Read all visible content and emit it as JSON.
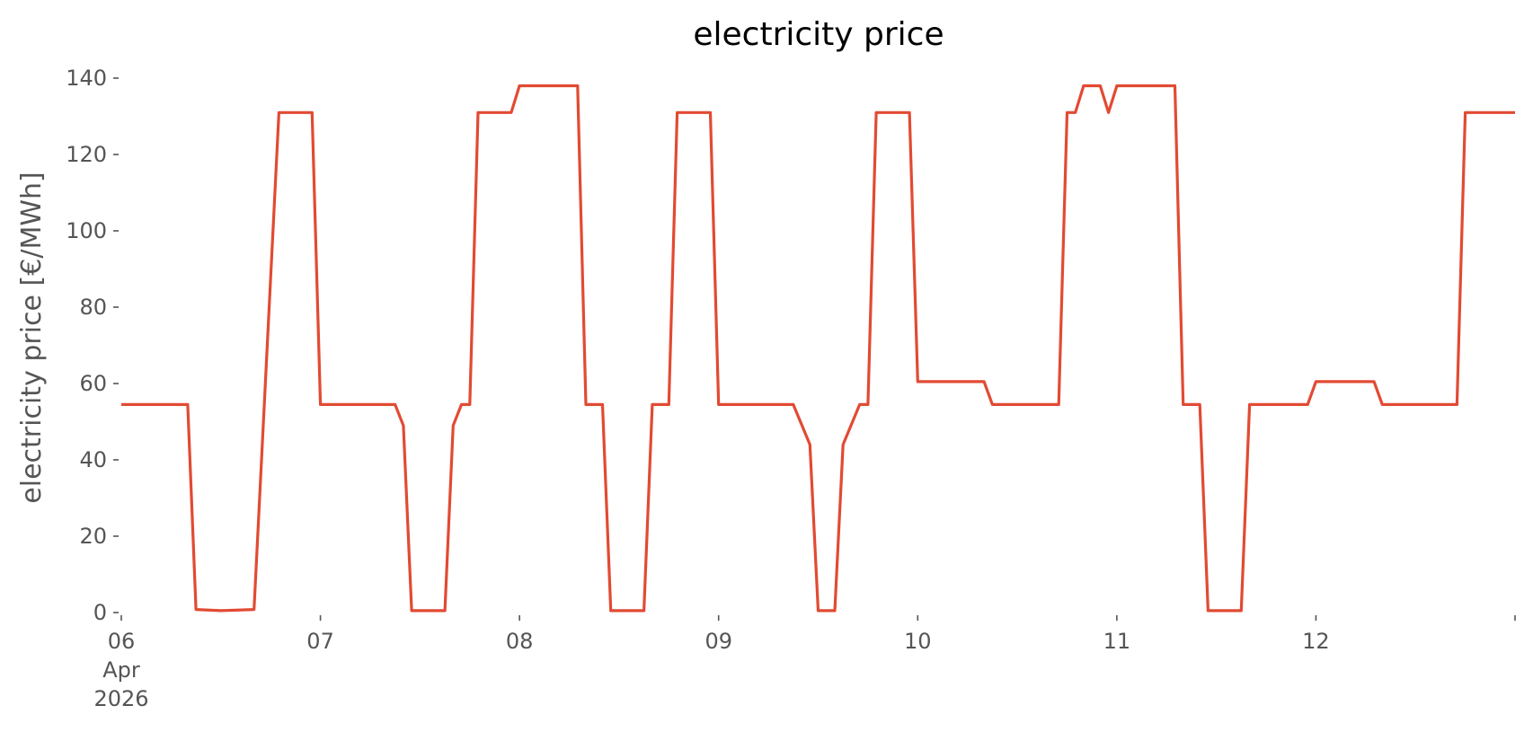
{
  "chart_data": {
    "type": "line",
    "title": "electricity price",
    "xlabel": "",
    "ylabel": "electricity price [€/MWh]",
    "xlim": [
      "2026-04-06 00:00",
      "2026-04-13 00:00"
    ],
    "ylim": [
      0,
      140
    ],
    "grid": false,
    "legend": "none",
    "x_ticks": [
      {
        "value": "2026-04-06 00:00",
        "label": [
          "06",
          "Apr",
          "2026"
        ]
      },
      {
        "value": "2026-04-07 00:00",
        "label": [
          "07"
        ]
      },
      {
        "value": "2026-04-08 00:00",
        "label": [
          "08"
        ]
      },
      {
        "value": "2026-04-09 00:00",
        "label": [
          "09"
        ]
      },
      {
        "value": "2026-04-10 00:00",
        "label": [
          "10"
        ]
      },
      {
        "value": "2026-04-11 00:00",
        "label": [
          "11"
        ]
      },
      {
        "value": "2026-04-12 00:00",
        "label": [
          "12"
        ]
      },
      {
        "value": "2026-04-13 00:00",
        "label": [
          ""
        ]
      }
    ],
    "y_ticks": [
      0,
      20,
      40,
      60,
      80,
      100,
      120,
      140
    ],
    "series": [
      {
        "color": "#e24a33",
        "points": [
          [
            "2026-04-06 00:00",
            54.5
          ],
          [
            "2026-04-06 08:00",
            54.5
          ],
          [
            "2026-04-06 09:00",
            0.8
          ],
          [
            "2026-04-06 12:00",
            0.5
          ],
          [
            "2026-04-06 16:00",
            0.8
          ],
          [
            "2026-04-06 19:00",
            131
          ],
          [
            "2026-04-06 23:00",
            131
          ],
          [
            "2026-04-07 00:00",
            54.5
          ],
          [
            "2026-04-07 09:00",
            54.5
          ],
          [
            "2026-04-07 10:00",
            49
          ],
          [
            "2026-04-07 11:00",
            0.5
          ],
          [
            "2026-04-07 15:00",
            0.5
          ],
          [
            "2026-04-07 16:00",
            49
          ],
          [
            "2026-04-07 17:00",
            54.5
          ],
          [
            "2026-04-07 18:00",
            54.5
          ],
          [
            "2026-04-07 19:00",
            131
          ],
          [
            "2026-04-07 23:00",
            131
          ],
          [
            "2026-04-08 00:00",
            138
          ],
          [
            "2026-04-08 07:00",
            138
          ],
          [
            "2026-04-08 08:00",
            54.5
          ],
          [
            "2026-04-08 10:00",
            54.5
          ],
          [
            "2026-04-08 11:00",
            0.5
          ],
          [
            "2026-04-08 15:00",
            0.5
          ],
          [
            "2026-04-08 16:00",
            54.5
          ],
          [
            "2026-04-08 18:00",
            54.5
          ],
          [
            "2026-04-08 19:00",
            131
          ],
          [
            "2026-04-08 23:00",
            131
          ],
          [
            "2026-04-09 00:00",
            54.5
          ],
          [
            "2026-04-09 09:00",
            54.5
          ],
          [
            "2026-04-09 11:00",
            44
          ],
          [
            "2026-04-09 12:00",
            0.5
          ],
          [
            "2026-04-09 14:00",
            0.5
          ],
          [
            "2026-04-09 15:00",
            44
          ],
          [
            "2026-04-09 17:00",
            54.5
          ],
          [
            "2026-04-09 18:00",
            54.5
          ],
          [
            "2026-04-09 19:00",
            131
          ],
          [
            "2026-04-09 23:00",
            131
          ],
          [
            "2026-04-10 00:00",
            60.5
          ],
          [
            "2026-04-10 08:00",
            60.5
          ],
          [
            "2026-04-10 09:00",
            54.5
          ],
          [
            "2026-04-10 17:00",
            54.5
          ],
          [
            "2026-04-10 18:00",
            131
          ],
          [
            "2026-04-10 19:00",
            131
          ],
          [
            "2026-04-10 20:00",
            138
          ],
          [
            "2026-04-10 22:00",
            138
          ],
          [
            "2026-04-10 23:00",
            131
          ],
          [
            "2026-04-11 00:00",
            138
          ],
          [
            "2026-04-11 07:00",
            138
          ],
          [
            "2026-04-11 08:00",
            54.5
          ],
          [
            "2026-04-11 10:00",
            54.5
          ],
          [
            "2026-04-11 11:00",
            0.5
          ],
          [
            "2026-04-11 15:00",
            0.5
          ],
          [
            "2026-04-11 16:00",
            54.5
          ],
          [
            "2026-04-11 23:00",
            54.5
          ],
          [
            "2026-04-12 00:00",
            60.5
          ],
          [
            "2026-04-12 07:00",
            60.5
          ],
          [
            "2026-04-12 08:00",
            54.5
          ],
          [
            "2026-04-12 17:00",
            54.5
          ],
          [
            "2026-04-12 18:00",
            131
          ],
          [
            "2026-04-13 00:00",
            131
          ]
        ]
      }
    ]
  }
}
